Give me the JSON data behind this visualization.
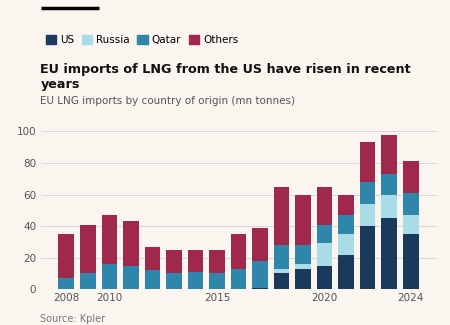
{
  "title": "EU imports of LNG from the US have risen in recent years",
  "subtitle": "EU LNG imports by country of origin (mn tonnes)",
  "source": "Source: Kpler",
  "background_color": "#faf5ef",
  "years": [
    2008,
    2009,
    2010,
    2011,
    2012,
    2013,
    2014,
    2015,
    2016,
    2017,
    2018,
    2019,
    2020,
    2021,
    2022,
    2023,
    2024
  ],
  "US": [
    0,
    0,
    0,
    0,
    0,
    0,
    0,
    0,
    0,
    1,
    10,
    13,
    15,
    22,
    40,
    45,
    35
  ],
  "Russia": [
    0,
    0,
    0,
    0,
    0,
    0,
    0,
    0,
    0,
    0,
    3,
    3,
    14,
    13,
    14,
    15,
    12
  ],
  "Qatar": [
    7,
    10,
    16,
    15,
    12,
    10,
    11,
    10,
    13,
    17,
    15,
    12,
    12,
    12,
    14,
    13,
    14
  ],
  "Others": [
    28,
    31,
    31,
    28,
    15,
    15,
    14,
    15,
    22,
    21,
    37,
    32,
    24,
    13,
    25,
    25,
    20
  ],
  "colors": {
    "US": "#1a3a5c",
    "Russia": "#aadce8",
    "Qatar": "#2e86ab",
    "Others": "#a0284a"
  },
  "ylim": [
    0,
    105
  ],
  "yticks": [
    0,
    20,
    40,
    60,
    80,
    100
  ],
  "bar_width": 0.72
}
